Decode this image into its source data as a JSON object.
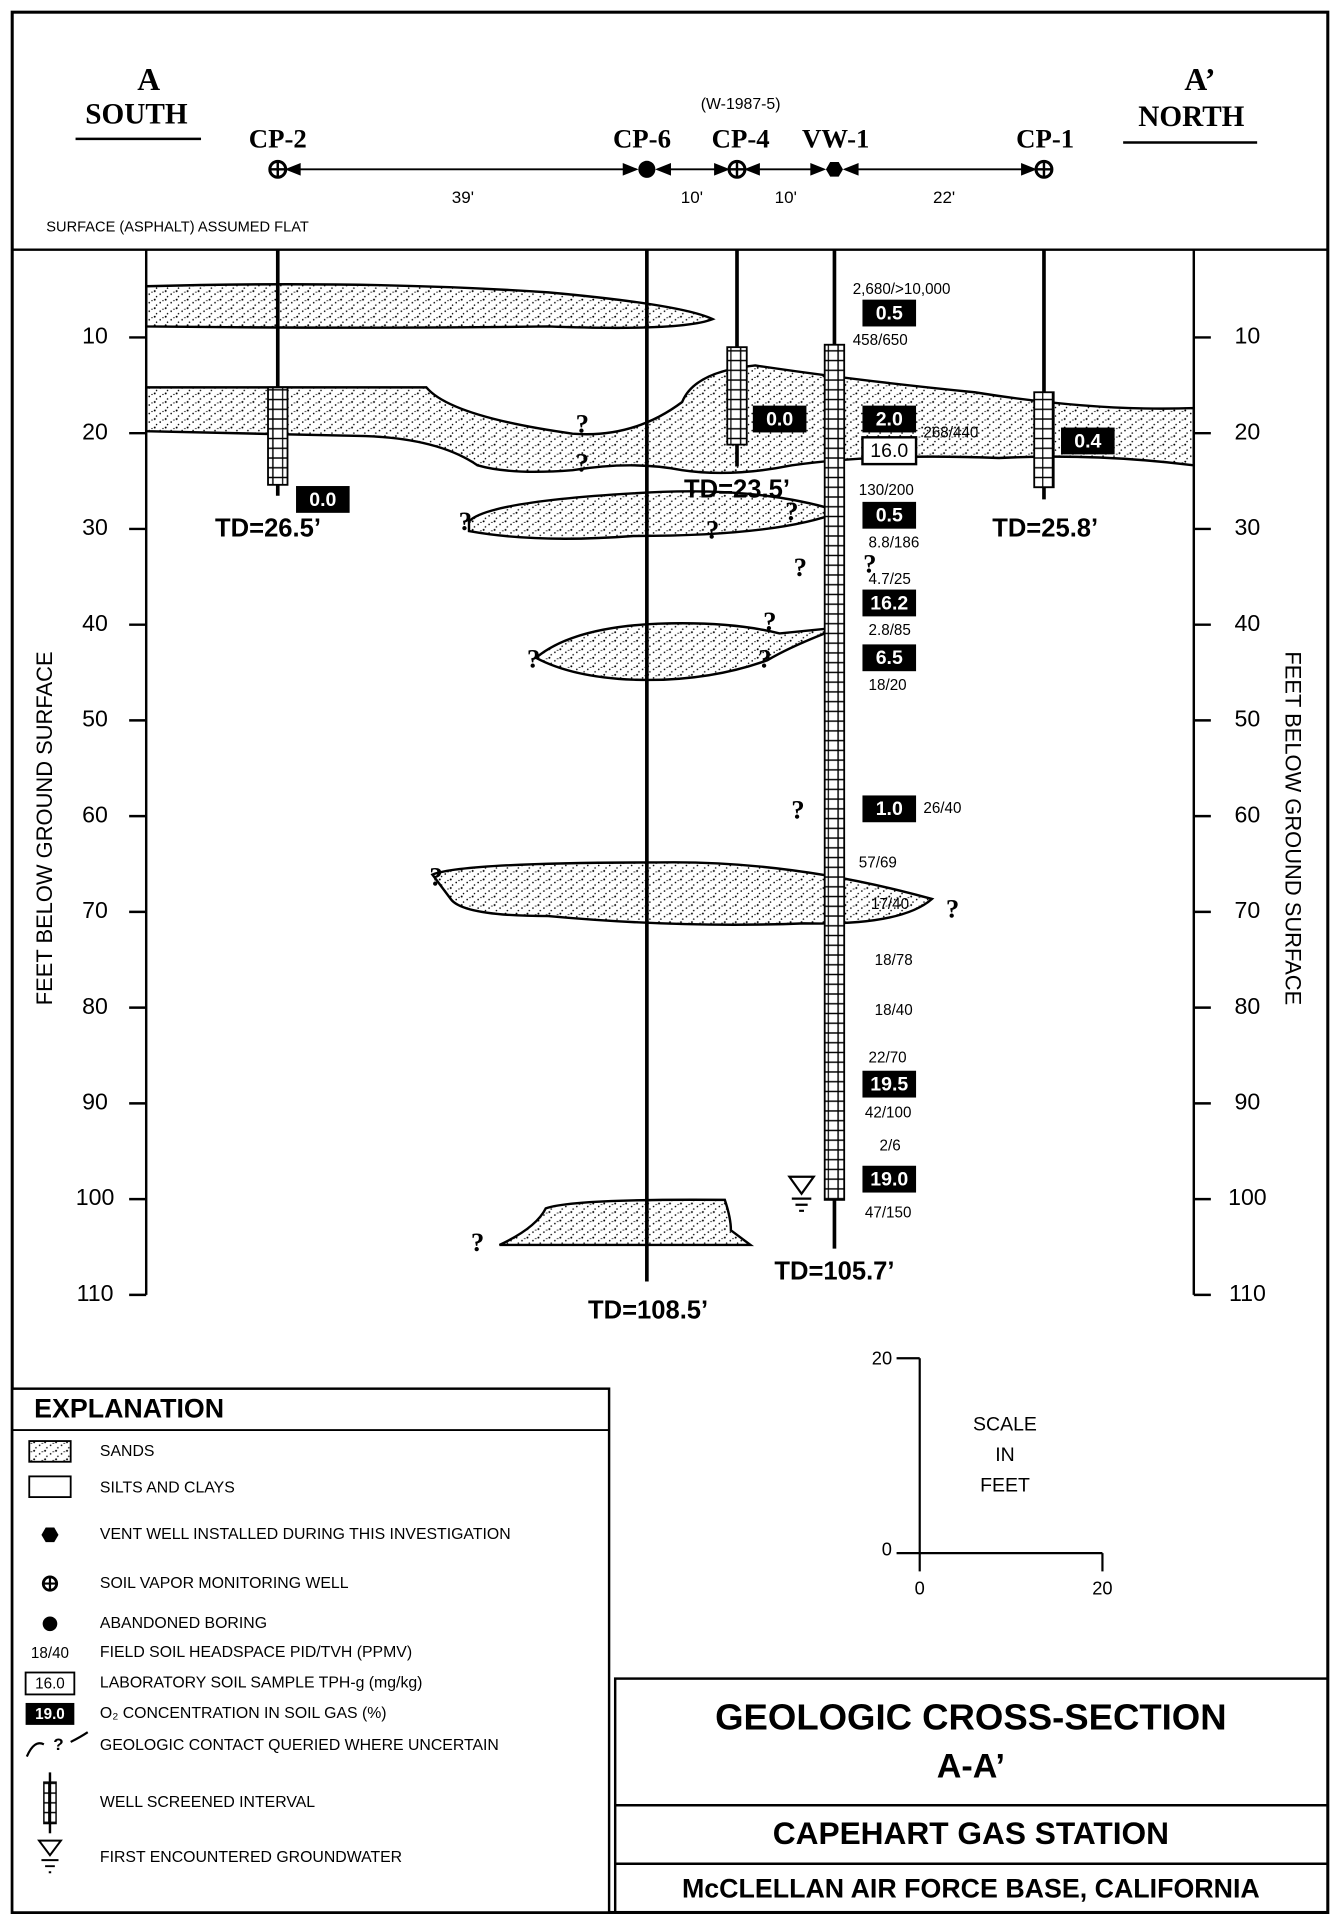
{
  "header": {
    "south_letter": "A",
    "south": "SOUTH",
    "north_letter": "A’",
    "north": "NORTH",
    "alias": "(W-1987-5)",
    "surface_note": "SURFACE (ASPHALT) ASSUMED FLAT"
  },
  "wells": [
    {
      "id": "CP-2",
      "td": "TD=26.5’"
    },
    {
      "id": "CP-6",
      "td": "TD=108.5’"
    },
    {
      "id": "CP-4",
      "td": "TD=23.5’"
    },
    {
      "id": "VW-1",
      "td": "TD=105.7’"
    },
    {
      "id": "CP-1",
      "td": "TD=25.8’"
    }
  ],
  "spacings": [
    "39'",
    "10'",
    "10'",
    "22'"
  ],
  "depth_axis": {
    "label": "FEET BELOW GROUND SURFACE",
    "ticks": [
      10,
      20,
      30,
      40,
      50,
      60,
      70,
      80,
      90,
      100,
      110
    ]
  },
  "query_mark": "?",
  "o2_labels": [
    "0.5",
    "0.0",
    "2.0",
    "0.0",
    "0.4",
    "0.5",
    "16.2",
    "6.5",
    "1.0",
    "19.5",
    "19.0"
  ],
  "lab_labels": [
    "16.0"
  ],
  "pid_labels": [
    "2,680/>10,000",
    "458/650",
    "268/440",
    "130/200",
    "8.8/186",
    "4.7/25",
    "2.8/85",
    "18/20",
    "26/40",
    "57/69",
    "17/40",
    "18/78",
    "18/40",
    "22/70",
    "42/100",
    "2/6",
    "47/150"
  ],
  "scale": {
    "lines": [
      "SCALE",
      "IN",
      "FEET"
    ],
    "y_ticks": [
      20,
      0
    ],
    "x_ticks": [
      0,
      20
    ]
  },
  "explanation": {
    "title": "EXPLANATION",
    "items": [
      {
        "text": "SANDS"
      },
      {
        "text": "SILTS AND CLAYS"
      },
      {
        "text": "VENT WELL INSTALLED DURING THIS INVESTIGATION"
      },
      {
        "text": "SOIL VAPOR MONITORING WELL"
      },
      {
        "text": "ABANDONED BORING"
      },
      {
        "sample": "18/40",
        "text": "FIELD SOIL HEADSPACE PID/TVH (PPMV)"
      },
      {
        "sample": "16.0",
        "text": "LABORATORY SOIL SAMPLE TPH-g (mg/kg)"
      },
      {
        "sample": "19.0",
        "text": "O₂ CONCENTRATION IN SOIL GAS (%)"
      },
      {
        "text": "GEOLOGIC CONTACT QUERIED WHERE UNCERTAIN"
      },
      {
        "text": "WELL SCREENED INTERVAL"
      },
      {
        "text": "FIRST ENCOUNTERED GROUNDWATER"
      }
    ]
  },
  "title_block": {
    "title": "GEOLOGIC CROSS-SECTION",
    "subtitle": "A-A’",
    "site": "CAPEHART GAS STATION",
    "base": "McCLELLAN AIR FORCE BASE, CALIFORNIA"
  }
}
